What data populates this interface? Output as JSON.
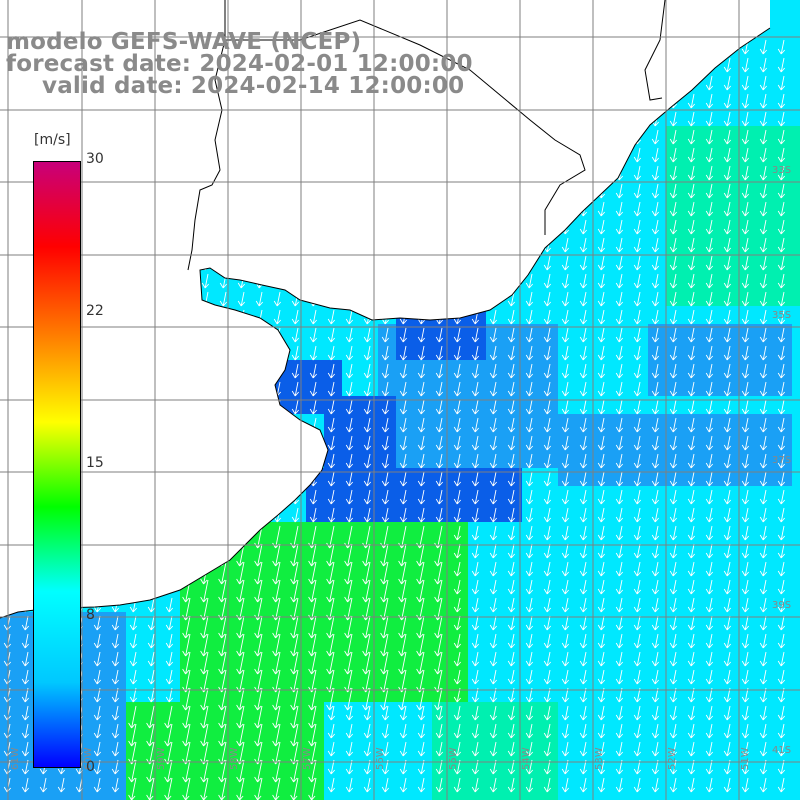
{
  "header": {
    "line1": "modelo GEFS-WAVE (NCEP)",
    "line2": "forecast date: 2024-02-01 12:00:00",
    "line3": "valid date: 2024-02-14 12:00:00"
  },
  "colorbar": {
    "units": "[m/s]",
    "ticks": [
      "30",
      "22",
      "15",
      "8",
      "0"
    ],
    "tick_values": [
      30,
      22,
      15,
      8,
      0
    ],
    "colors": [
      "#0000ff",
      "#00c8ff",
      "#00ffff",
      "#00ff00",
      "#ffff00",
      "#ff8000",
      "#ff0000",
      "#c8007a"
    ]
  },
  "map": {
    "lat_labels": [
      "33S",
      "35S",
      "37S",
      "39S",
      "41S"
    ],
    "lon_labels": [
      "61W",
      "60W",
      "59W",
      "58W",
      "57W",
      "56W",
      "55W",
      "54W",
      "53W",
      "52W",
      "51W"
    ],
    "field_colors": {
      "calm": "#0a5ee8",
      "light": "#1aa0f5",
      "moderate": "#00e8ff",
      "fresh": "#00f0b0",
      "strong": "#10ee40"
    },
    "land_color": "#ffffff",
    "coast_color": "#000000",
    "grid_color": "#7f7f7f",
    "arrow_color": "#ffffff",
    "wind_direction": "from north-northeast"
  }
}
